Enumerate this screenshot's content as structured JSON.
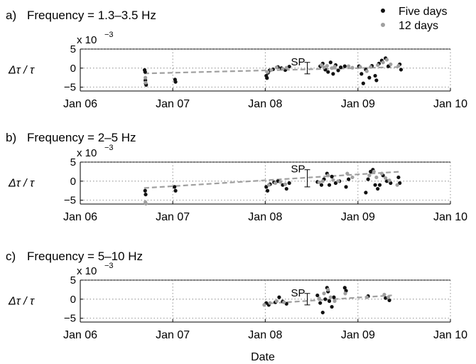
{
  "legend": {
    "placement": "top-right",
    "entries": [
      {
        "label": "Five days",
        "color": "#111111"
      },
      {
        "label": "12 days",
        "color": "#a0a0a0"
      }
    ]
  },
  "shared": {
    "ylabel": "Δτ / τ",
    "exponent_label": "x 10",
    "exponent_power": "−3",
    "xlabel": "Date",
    "sp_label": "SP",
    "xticks": [
      "Jan 06",
      "Jan 07",
      "Jan 08",
      "Jan 09",
      "Jan 10"
    ],
    "xtick_values": [
      "2006-01-01",
      "2007-01-01",
      "2008-01-01",
      "2009-01-01",
      "2010-01-01"
    ],
    "yticks": [
      5,
      0,
      -5
    ],
    "ylim": [
      -6,
      5
    ],
    "xlim": [
      "2006-01-01",
      "2010-01-01"
    ],
    "grid": "dotted",
    "trend_line_color": "#a0a0a0",
    "five_day_color": "#111111",
    "twelve_day_color": "#a0a0a0"
  },
  "chart_data": [
    {
      "type": "scatter",
      "panel_letter": "a)",
      "title": "Frequency = 1.3–3.5 Hz",
      "sp_range": [
        -1.5,
        1.5
      ],
      "trend": [
        [
          "2006-09-10",
          -1.4
        ],
        [
          "2009-06-20",
          0.3
        ]
      ],
      "five_days": [
        [
          "2006-09-12",
          -0.5
        ],
        [
          "2006-09-14",
          -1.0
        ],
        [
          "2006-09-15",
          -3.2
        ],
        [
          "2006-09-16",
          -4.0
        ],
        [
          "2006-09-18",
          -4.4
        ],
        [
          "2007-01-10",
          -3.0
        ],
        [
          "2007-01-12",
          -3.6
        ],
        [
          "2008-01-05",
          -2.0
        ],
        [
          "2008-01-08",
          -2.6
        ],
        [
          "2008-01-12",
          -1.2
        ],
        [
          "2008-01-18",
          -0.6
        ],
        [
          "2008-02-01",
          -0.3
        ],
        [
          "2008-02-20",
          0.3
        ],
        [
          "2008-03-05",
          0.0
        ],
        [
          "2008-03-20",
          -0.5
        ],
        [
          "2008-04-05",
          0.4
        ],
        [
          "2008-08-05",
          0.5
        ],
        [
          "2008-08-15",
          1.2
        ],
        [
          "2008-08-25",
          -0.4
        ],
        [
          "2008-09-05",
          -1.0
        ],
        [
          "2008-09-15",
          1.5
        ],
        [
          "2008-09-25",
          -1.5
        ],
        [
          "2008-10-05",
          0.8
        ],
        [
          "2008-10-15",
          -0.6
        ],
        [
          "2008-10-25",
          0.2
        ],
        [
          "2008-11-10",
          0.5
        ],
        [
          "2009-01-05",
          0.5
        ],
        [
          "2009-01-15",
          -1.5
        ],
        [
          "2009-01-22",
          -4.0
        ],
        [
          "2009-02-01",
          -0.4
        ],
        [
          "2009-02-15",
          -2.5
        ],
        [
          "2009-02-25",
          0.6
        ],
        [
          "2009-03-10",
          -2.0
        ],
        [
          "2009-03-15",
          -3.2
        ],
        [
          "2009-03-25",
          1.2
        ],
        [
          "2009-04-05",
          2.0
        ],
        [
          "2009-04-20",
          2.6
        ],
        [
          "2009-05-01",
          0.5
        ],
        [
          "2009-06-15",
          1.0
        ],
        [
          "2009-06-20",
          -0.4
        ]
      ],
      "twelve_days": [
        [
          "2006-09-15",
          -2.5
        ],
        [
          "2006-09-16",
          -3.8
        ],
        [
          "2008-01-10",
          -1.0
        ],
        [
          "2008-01-25",
          -0.5
        ],
        [
          "2008-02-15",
          0.2
        ],
        [
          "2008-03-10",
          -0.2
        ],
        [
          "2008-03-25",
          0.1
        ],
        [
          "2008-08-10",
          0.8
        ],
        [
          "2008-08-20",
          0.2
        ],
        [
          "2008-09-01",
          0.6
        ],
        [
          "2008-09-20",
          0.0
        ],
        [
          "2008-10-01",
          0.4
        ],
        [
          "2008-11-25",
          0.5
        ],
        [
          "2008-12-10",
          0.1
        ],
        [
          "2009-01-10",
          0.3
        ],
        [
          "2009-02-05",
          -0.8
        ],
        [
          "2009-02-20",
          0.3
        ],
        [
          "2009-03-20",
          0.8
        ],
        [
          "2009-04-10",
          1.5
        ],
        [
          "2009-04-25",
          2.2
        ],
        [
          "2009-05-10",
          1.0
        ],
        [
          "2009-06-10",
          0.6
        ]
      ]
    },
    {
      "type": "scatter",
      "panel_letter": "b)",
      "title": "Frequency = 2–5 Hz",
      "sp_range": [
        -1.5,
        3.0
      ],
      "trend": [
        [
          "2006-09-10",
          -1.8
        ],
        [
          "2009-06-20",
          2.5
        ]
      ],
      "five_days": [
        [
          "2006-09-14",
          -2.5
        ],
        [
          "2006-09-16",
          -3.5
        ],
        [
          "2007-01-08",
          -1.5
        ],
        [
          "2007-01-12",
          -2.5
        ],
        [
          "2008-01-05",
          -1.5
        ],
        [
          "2008-01-10",
          -2.5
        ],
        [
          "2008-01-20",
          -0.8
        ],
        [
          "2008-02-05",
          -0.3
        ],
        [
          "2008-02-20",
          0.0
        ],
        [
          "2008-03-10",
          -1.0
        ],
        [
          "2008-03-25",
          -2.0
        ],
        [
          "2008-04-05",
          -0.5
        ],
        [
          "2008-07-25",
          -0.2
        ],
        [
          "2008-08-10",
          -1.0
        ],
        [
          "2008-08-20",
          0.5
        ],
        [
          "2008-09-01",
          2.0
        ],
        [
          "2008-09-10",
          -1.0
        ],
        [
          "2008-09-20",
          1.2
        ],
        [
          "2008-10-05",
          -0.5
        ],
        [
          "2008-10-20",
          0.0
        ],
        [
          "2008-11-15",
          -1.5
        ],
        [
          "2008-11-25",
          0.5
        ],
        [
          "2009-02-01",
          -3.0
        ],
        [
          "2009-02-10",
          0.5
        ],
        [
          "2009-02-20",
          2.5
        ],
        [
          "2009-03-01",
          3.0
        ],
        [
          "2009-03-10",
          -1.0
        ],
        [
          "2009-03-20",
          -2.0
        ],
        [
          "2009-03-28",
          -1.0
        ],
        [
          "2009-04-10",
          1.5
        ],
        [
          "2009-04-25",
          0.0
        ],
        [
          "2009-05-10",
          -0.5
        ],
        [
          "2009-06-10",
          1.0
        ],
        [
          "2009-06-15",
          -0.5
        ]
      ],
      "twelve_days": [
        [
          "2006-09-15",
          -5.5
        ],
        [
          "2006-09-17",
          -5.9
        ],
        [
          "2008-01-15",
          -1.0
        ],
        [
          "2008-02-10",
          -0.5
        ],
        [
          "2008-03-01",
          -0.2
        ],
        [
          "2008-03-20",
          -0.8
        ],
        [
          "2008-08-01",
          -0.3
        ],
        [
          "2008-08-15",
          0.0
        ],
        [
          "2008-09-05",
          1.5
        ],
        [
          "2008-09-25",
          0.3
        ],
        [
          "2008-10-15",
          0.0
        ],
        [
          "2008-11-20",
          2.0
        ],
        [
          "2008-12-10",
          1.0
        ],
        [
          "2009-02-15",
          1.5
        ],
        [
          "2009-03-05",
          2.5
        ],
        [
          "2009-03-15",
          1.0
        ],
        [
          "2009-04-05",
          2.0
        ],
        [
          "2009-04-20",
          0.8
        ],
        [
          "2009-05-05",
          0.2
        ],
        [
          "2009-06-05",
          -1.0
        ]
      ]
    },
    {
      "type": "scatter",
      "panel_letter": "c)",
      "title": "Frequency = 5–10 Hz",
      "sp_range": [
        -1.5,
        1.5
      ],
      "trend": [
        [
          "2007-12-25",
          -1.2
        ],
        [
          "2009-05-15",
          1.0
        ]
      ],
      "five_days": [
        [
          "2008-01-05",
          -1.0
        ],
        [
          "2008-01-15",
          -1.5
        ],
        [
          "2008-02-10",
          -0.8
        ],
        [
          "2008-02-25",
          0.5
        ],
        [
          "2008-03-10",
          -0.6
        ],
        [
          "2008-03-25",
          -1.2
        ],
        [
          "2008-07-25",
          1.0
        ],
        [
          "2008-08-05",
          -1.0
        ],
        [
          "2008-08-15",
          -3.5
        ],
        [
          "2008-08-25",
          0.0
        ],
        [
          "2008-09-01",
          3.0
        ],
        [
          "2008-09-05",
          2.0
        ],
        [
          "2008-09-10",
          -0.5
        ],
        [
          "2008-09-20",
          -2.0
        ],
        [
          "2008-09-28",
          0.5
        ],
        [
          "2008-11-10",
          3.0
        ],
        [
          "2008-11-15",
          2.2
        ],
        [
          "2009-02-10",
          0.8
        ],
        [
          "2009-04-20",
          0.3
        ],
        [
          "2009-05-05",
          -0.3
        ]
      ],
      "twelve_days": [
        [
          "2007-12-28",
          -1.5
        ],
        [
          "2008-01-20",
          -1.0
        ],
        [
          "2008-02-15",
          -0.5
        ],
        [
          "2008-03-15",
          -0.8
        ],
        [
          "2008-08-01",
          0.2
        ],
        [
          "2008-08-20",
          1.5
        ],
        [
          "2008-09-05",
          2.5
        ],
        [
          "2008-09-15",
          0.5
        ],
        [
          "2008-10-01",
          -0.5
        ],
        [
          "2008-11-12",
          1.5
        ],
        [
          "2009-02-05",
          0.5
        ],
        [
          "2009-04-15",
          1.2
        ],
        [
          "2009-05-01",
          0.5
        ]
      ]
    }
  ]
}
